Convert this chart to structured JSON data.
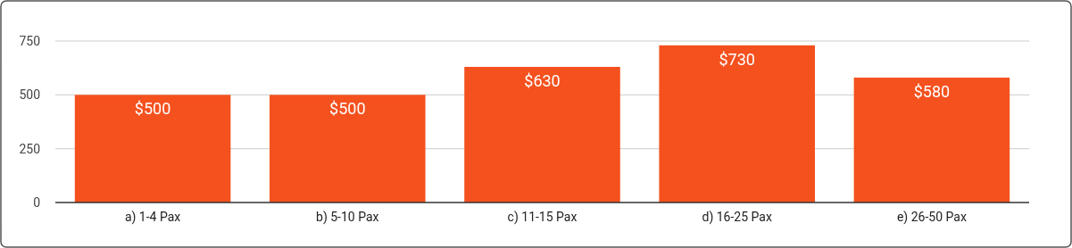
{
  "chart_data": {
    "type": "bar",
    "categories": [
      "a) 1-4 Pax",
      "b) 5-10 Pax",
      "c) 11-15 Pax",
      "d) 16-25 Pax",
      "e) 26-50 Pax"
    ],
    "values": [
      500,
      500,
      630,
      730,
      580
    ],
    "value_labels": [
      "$500",
      "$500",
      "$630",
      "$730",
      "$580"
    ],
    "color": "#f4511e",
    "ylim": [
      0,
      750
    ],
    "yticks": [
      0,
      250,
      500,
      750
    ],
    "grid": "y"
  }
}
